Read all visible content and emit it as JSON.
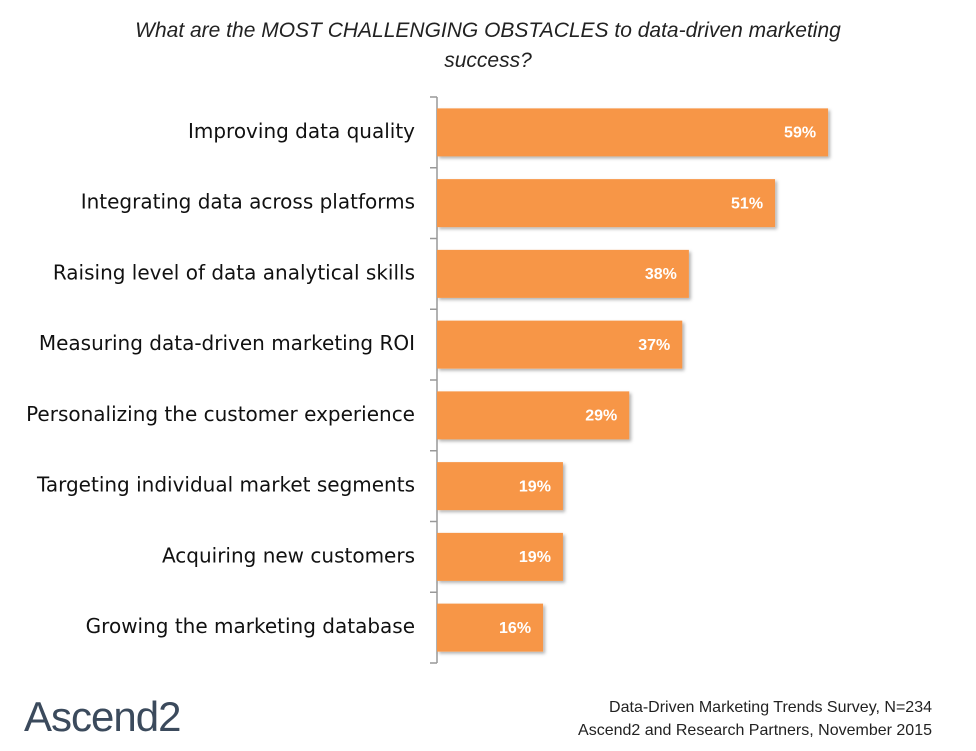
{
  "chart_data": {
    "type": "bar",
    "orientation": "horizontal",
    "title": "What are the MOST CHALLENGING OBSTACLES to data-driven marketing success?",
    "categories": [
      "Improving data quality",
      "Integrating data across platforms",
      "Raising level of data analytical skills",
      "Measuring data-driven marketing ROI",
      "Personalizing the customer experience",
      "Targeting individual market segments",
      "Acquiring new customers",
      "Growing the marketing database"
    ],
    "values": [
      59,
      51,
      38,
      37,
      29,
      19,
      19,
      16
    ],
    "value_labels": [
      "59%",
      "51%",
      "38%",
      "37%",
      "29%",
      "19%",
      "19%",
      "16%"
    ],
    "color": "#f79646",
    "xlim": [
      0,
      70
    ]
  },
  "source": [
    "Data-Driven Marketing Trends Survey, N=234",
    "Ascend2 and Research Partners, November 2015"
  ],
  "logo": "Ascend2"
}
